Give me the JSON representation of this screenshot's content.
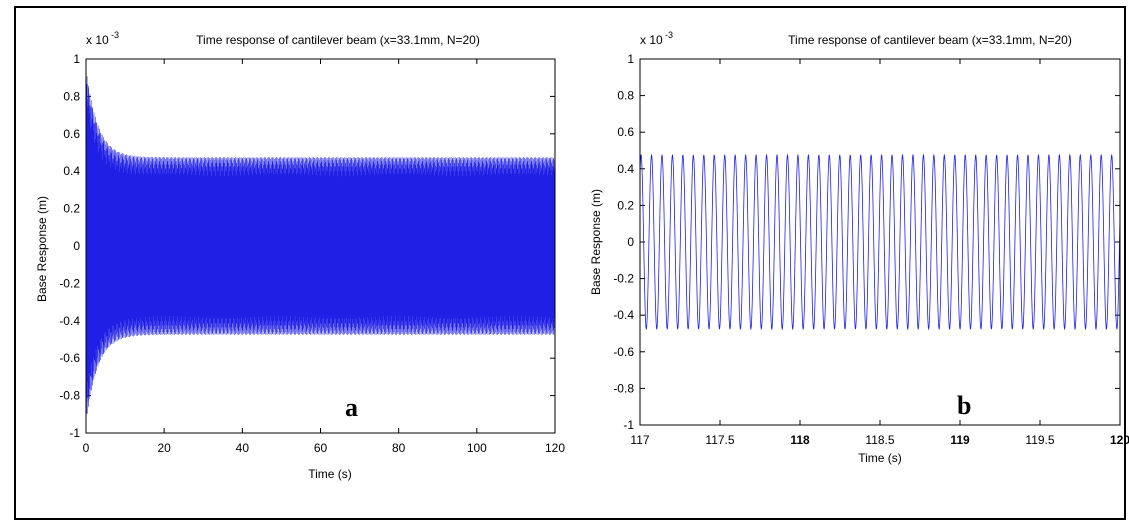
{
  "chart_data": [
    {
      "type": "line",
      "panel_label": "a",
      "title": "Time response of cantilever beam (x=33.1mm, N=20)",
      "xlabel": "Time (s)",
      "ylabel": "Base Response (m)",
      "y_exponent_label": "x 10",
      "y_exponent_power": "-3",
      "xlim": [
        0,
        120
      ],
      "ylim": [
        -1,
        1
      ],
      "x_ticks": [
        "0",
        "20",
        "40",
        "60",
        "80",
        "100",
        "120"
      ],
      "y_ticks": [
        "1",
        "0.8",
        "0.6",
        "0.4",
        "0.2",
        "0",
        "-0.2",
        "-0.4",
        "-0.6",
        "-0.8",
        "-1"
      ],
      "grid": false,
      "series": [
        {
          "color": "#1f1fe6",
          "signal": {
            "model": "decaying transient + steady sinusoid",
            "steady_amplitude": 0.475,
            "initial_peak": 0.95,
            "decay_time_s": 3,
            "frequency_hz": 15.3,
            "t_start": 0,
            "t_end": 120
          }
        }
      ]
    },
    {
      "type": "line",
      "panel_label": "b",
      "title": "Time response of cantilever beam (x=33.1mm, N=20)",
      "xlabel": "Time (s)",
      "ylabel": "Base Response (m)",
      "y_exponent_label": "x 10",
      "y_exponent_power": "-3",
      "xlim": [
        117,
        120
      ],
      "ylim": [
        -1,
        1
      ],
      "x_ticks": [
        "117",
        "117.5",
        "118",
        "118.5",
        "119",
        "119.5",
        "120"
      ],
      "y_ticks": [
        "1",
        "0.8",
        "0.6",
        "0.4",
        "0.2",
        "0",
        "-0.2",
        "-0.4",
        "-0.6",
        "-0.8",
        "-1"
      ],
      "grid": false,
      "series": [
        {
          "color": "#1f1fe6",
          "signal": {
            "model": "steady sinusoid",
            "steady_amplitude": 0.475,
            "frequency_hz": 15.3,
            "t_start": 117,
            "t_end": 120
          }
        }
      ]
    }
  ]
}
